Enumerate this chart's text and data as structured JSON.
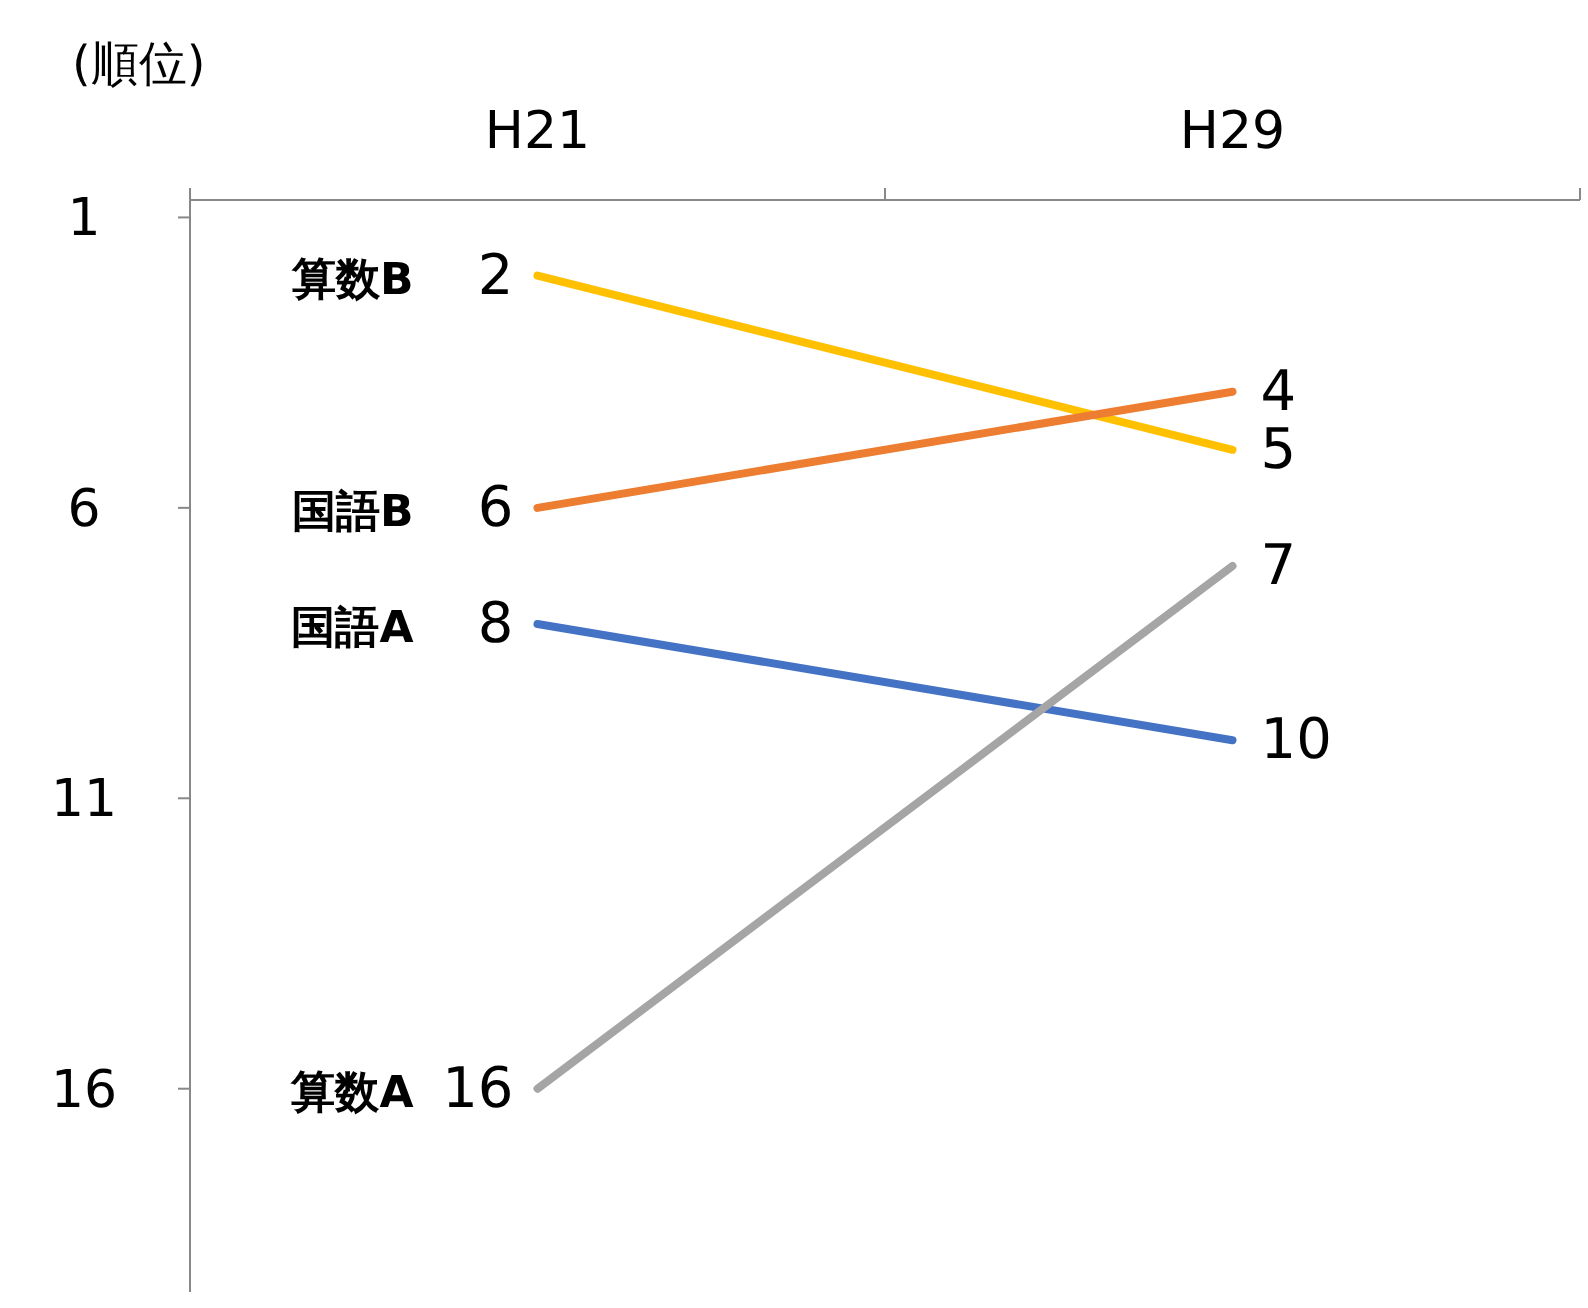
{
  "chart_data": {
    "type": "line",
    "ylabel": "(順位)",
    "categories": [
      "H21",
      "H29"
    ],
    "ylim": [
      19.5,
      0.7
    ],
    "yticks": [
      1,
      6,
      11,
      16
    ],
    "data_labels": true,
    "marker": "none",
    "line_style": "solid",
    "series": [
      {
        "name": "算数B",
        "color": "#ffc000",
        "values": [
          2,
          5
        ]
      },
      {
        "name": "国語B",
        "color": "#ed7d31",
        "values": [
          6,
          4
        ]
      },
      {
        "name": "国語A",
        "color": "#4472c4",
        "values": [
          8,
          10
        ]
      },
      {
        "name": "算数A",
        "color": "#a5a5a5",
        "values": [
          16,
          7
        ]
      }
    ]
  }
}
